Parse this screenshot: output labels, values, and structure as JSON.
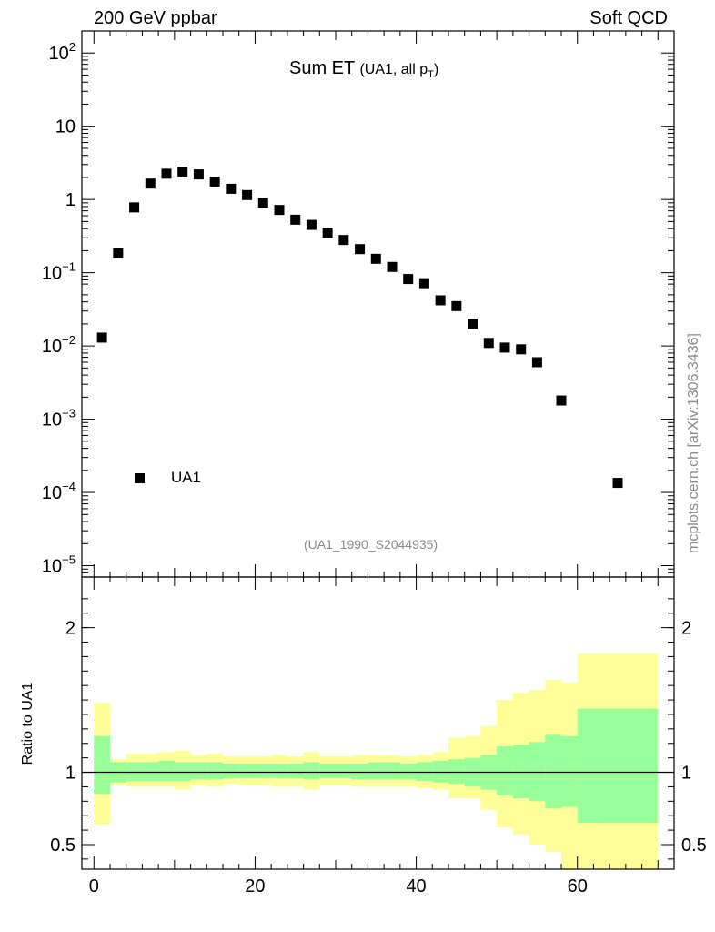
{
  "header": {
    "left": "200 GeV ppbar",
    "right": "Soft QCD"
  },
  "side_label": "mcplots.cern.ch [arXiv:1306.3436]",
  "colors": {
    "marker": "#000000",
    "band_inner": "#99ff99",
    "band_outer": "#ffff99",
    "ref_text": "#8a8a8a"
  },
  "chart_data": [
    {
      "type": "scatter",
      "title": "Sum ET",
      "title_sub": "(UA1, all p",
      "title_sub_index": "T",
      "title_sub_end": ")",
      "yscale": "log",
      "ylim": [
        7e-06,
        200
      ],
      "xlim": [
        -1.5,
        72
      ],
      "y_ticks": [
        {
          "value": 100,
          "base": "10",
          "exp": "2"
        },
        {
          "value": 10,
          "base": "10",
          "exp": ""
        },
        {
          "value": 1,
          "base": "1",
          "exp": ""
        },
        {
          "value": 0.1,
          "base": "10",
          "exp": "−1"
        },
        {
          "value": 0.01,
          "base": "10",
          "exp": "−2"
        },
        {
          "value": 0.001,
          "base": "10",
          "exp": "−3"
        },
        {
          "value": 0.0001,
          "base": "10",
          "exp": "−4"
        },
        {
          "value": 1e-05,
          "base": "10",
          "exp": "−5"
        }
      ],
      "legend": "UA1",
      "reference": "(UA1_1990_S2044935)",
      "series": [
        {
          "name": "UA1",
          "x": [
            1,
            3,
            5,
            7,
            9,
            11,
            13,
            15,
            17,
            19,
            21,
            23,
            25,
            27,
            29,
            31,
            33,
            35,
            37,
            39,
            41,
            43,
            45,
            47,
            49,
            51,
            53,
            55,
            58,
            65
          ],
          "y": [
            0.013,
            0.185,
            0.78,
            1.65,
            2.25,
            2.4,
            2.2,
            1.75,
            1.4,
            1.15,
            0.9,
            0.72,
            0.53,
            0.45,
            0.35,
            0.28,
            0.21,
            0.155,
            0.12,
            0.082,
            0.072,
            0.042,
            0.035,
            0.02,
            0.011,
            0.0095,
            0.009,
            0.006,
            0.0018,
            0.000135
          ]
        }
      ]
    },
    {
      "type": "area",
      "ylabel": "Ratio to UA1",
      "ylim": [
        0.33,
        2.35
      ],
      "xlim": [
        -1.5,
        72
      ],
      "y_ticks": [
        2,
        1,
        0.5
      ],
      "y_tick_labels": [
        "2",
        "1",
        "0.5"
      ],
      "x_ticks": [
        0,
        20,
        40,
        60
      ],
      "x_tick_labels": [
        "0",
        "20",
        "40",
        "60"
      ],
      "reference_line": 1,
      "bins": [
        {
          "lo": 0,
          "hi": 2,
          "inner": [
            0.85,
            1.25
          ],
          "outer": [
            0.64,
            1.48
          ]
        },
        {
          "lo": 2,
          "hi": 4,
          "inner": [
            0.93,
            1.07
          ],
          "outer": [
            0.91,
            1.09
          ]
        },
        {
          "lo": 4,
          "hi": 6,
          "inner": [
            0.94,
            1.07
          ],
          "outer": [
            0.9,
            1.13
          ]
        },
        {
          "lo": 6,
          "hi": 8,
          "inner": [
            0.94,
            1.07
          ],
          "outer": [
            0.9,
            1.13
          ]
        },
        {
          "lo": 8,
          "hi": 10,
          "inner": [
            0.94,
            1.08
          ],
          "outer": [
            0.9,
            1.14
          ]
        },
        {
          "lo": 10,
          "hi": 12,
          "inner": [
            0.94,
            1.07
          ],
          "outer": [
            0.88,
            1.15
          ]
        },
        {
          "lo": 12,
          "hi": 14,
          "inner": [
            0.95,
            1.07
          ],
          "outer": [
            0.91,
            1.12
          ]
        },
        {
          "lo": 14,
          "hi": 16,
          "inner": [
            0.95,
            1.07
          ],
          "outer": [
            0.9,
            1.13
          ]
        },
        {
          "lo": 16,
          "hi": 18,
          "inner": [
            0.96,
            1.06
          ],
          "outer": [
            0.92,
            1.11
          ]
        },
        {
          "lo": 18,
          "hi": 20,
          "inner": [
            0.96,
            1.06
          ],
          "outer": [
            0.91,
            1.11
          ]
        },
        {
          "lo": 20,
          "hi": 22,
          "inner": [
            0.96,
            1.06
          ],
          "outer": [
            0.91,
            1.11
          ]
        },
        {
          "lo": 22,
          "hi": 24,
          "inner": [
            0.96,
            1.06
          ],
          "outer": [
            0.9,
            1.12
          ]
        },
        {
          "lo": 24,
          "hi": 26,
          "inner": [
            0.96,
            1.06
          ],
          "outer": [
            0.9,
            1.11
          ]
        },
        {
          "lo": 26,
          "hi": 28,
          "inner": [
            0.95,
            1.07
          ],
          "outer": [
            0.88,
            1.14
          ]
        },
        {
          "lo": 28,
          "hi": 30,
          "inner": [
            0.96,
            1.06
          ],
          "outer": [
            0.91,
            1.11
          ]
        },
        {
          "lo": 30,
          "hi": 32,
          "inner": [
            0.96,
            1.06
          ],
          "outer": [
            0.91,
            1.11
          ]
        },
        {
          "lo": 32,
          "hi": 34,
          "inner": [
            0.95,
            1.06
          ],
          "outer": [
            0.9,
            1.12
          ]
        },
        {
          "lo": 34,
          "hi": 36,
          "inner": [
            0.95,
            1.07
          ],
          "outer": [
            0.9,
            1.12
          ]
        },
        {
          "lo": 36,
          "hi": 38,
          "inner": [
            0.95,
            1.07
          ],
          "outer": [
            0.9,
            1.12
          ]
        },
        {
          "lo": 38,
          "hi": 40,
          "inner": [
            0.95,
            1.06
          ],
          "outer": [
            0.9,
            1.11
          ]
        },
        {
          "lo": 40,
          "hi": 42,
          "inner": [
            0.94,
            1.07
          ],
          "outer": [
            0.89,
            1.12
          ]
        },
        {
          "lo": 42,
          "hi": 44,
          "inner": [
            0.93,
            1.08
          ],
          "outer": [
            0.88,
            1.14
          ]
        },
        {
          "lo": 44,
          "hi": 46,
          "inner": [
            0.92,
            1.09
          ],
          "outer": [
            0.82,
            1.24
          ]
        },
        {
          "lo": 46,
          "hi": 48,
          "inner": [
            0.9,
            1.1
          ],
          "outer": [
            0.82,
            1.25
          ]
        },
        {
          "lo": 48,
          "hi": 50,
          "inner": [
            0.88,
            1.12
          ],
          "outer": [
            0.74,
            1.32
          ]
        },
        {
          "lo": 50,
          "hi": 52,
          "inner": [
            0.84,
            1.18
          ],
          "outer": [
            0.62,
            1.5
          ]
        },
        {
          "lo": 52,
          "hi": 54,
          "inner": [
            0.82,
            1.19
          ],
          "outer": [
            0.57,
            1.55
          ]
        },
        {
          "lo": 54,
          "hi": 56,
          "inner": [
            0.8,
            1.21
          ],
          "outer": [
            0.5,
            1.57
          ]
        },
        {
          "lo": 56,
          "hi": 58,
          "inner": [
            0.75,
            1.26
          ],
          "outer": [
            0.45,
            1.64
          ]
        },
        {
          "lo": 58,
          "hi": 60,
          "inner": [
            0.76,
            1.25
          ],
          "outer": [
            0.33,
            1.62
          ]
        },
        {
          "lo": 60,
          "hi": 70,
          "inner": [
            0.65,
            1.44
          ],
          "outer": [
            0.33,
            1.82
          ]
        }
      ]
    }
  ]
}
